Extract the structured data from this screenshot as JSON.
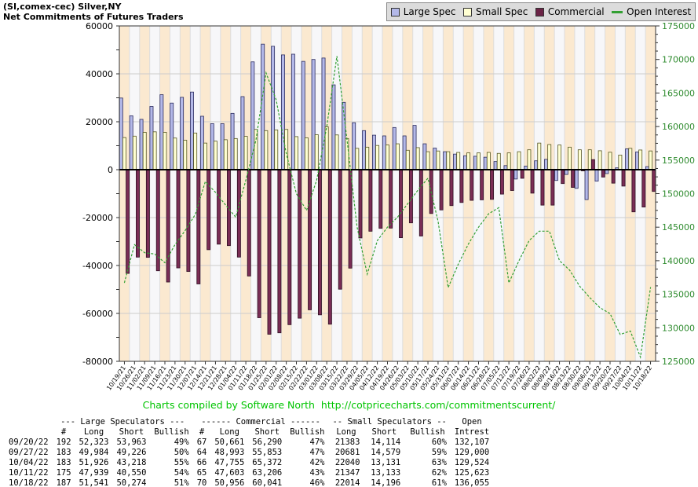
{
  "header": {
    "title_line1": "(SI,comex-cec) Silver,NY",
    "title_line2": "Net Commitments of Futures Traders"
  },
  "legend": {
    "items": [
      {
        "label": "Large Spec",
        "type": "square",
        "color": "#b3b8e8"
      },
      {
        "label": "Small Spec",
        "type": "square",
        "color": "#ffffd2"
      },
      {
        "label": "Commercial",
        "type": "square",
        "color": "#6b2346"
      },
      {
        "label": "Open Interest",
        "type": "line",
        "color": "#33a033"
      }
    ]
  },
  "chart_data": {
    "type": "bar+line",
    "title": "Net Commitments of Futures Traders",
    "categories": [
      "10/19/21",
      "10/26/21",
      "11/02/21",
      "11/09/21",
      "11/16/21",
      "11/23/21",
      "11/30/21",
      "12/07/21",
      "12/14/21",
      "12/21/21",
      "12/28/21",
      "01/04/22",
      "01/11/22",
      "01/18/22",
      "01/25/22",
      "02/01/22",
      "02/08/22",
      "02/15/22",
      "02/22/22",
      "03/01/22",
      "03/08/22",
      "03/15/22",
      "03/22/22",
      "03/29/22",
      "04/05/22",
      "04/12/22",
      "04/19/22",
      "04/26/22",
      "05/03/22",
      "05/10/22",
      "05/17/22",
      "05/24/22",
      "05/31/22",
      "06/07/22",
      "06/14/22",
      "06/21/22",
      "06/28/22",
      "07/05/22",
      "07/12/22",
      "07/19/22",
      "07/26/22",
      "08/02/22",
      "08/09/22",
      "08/16/22",
      "08/23/22",
      "08/30/22",
      "09/06/22",
      "09/13/22",
      "09/20/22",
      "09/27/22",
      "10/04/22",
      "10/11/22",
      "10/18/22"
    ],
    "series": [
      {
        "name": "Large Spec",
        "axis": "left",
        "kind": "bar",
        "fill": "#b3b8e8",
        "stroke": "#2b2b5e",
        "values": [
          29900,
          22500,
          21000,
          26400,
          31300,
          27800,
          30200,
          32400,
          22300,
          19200,
          19200,
          23500,
          30500,
          45000,
          52400,
          51500,
          47900,
          48200,
          45200,
          46000,
          46600,
          35400,
          28100,
          19600,
          16300,
          14400,
          14100,
          17600,
          14100,
          18500,
          10800,
          9000,
          7500,
          6500,
          5800,
          5600,
          5200,
          3400,
          1700,
          -3900,
          1500,
          3700,
          4300,
          -4500,
          -2000,
          -7800,
          -12500,
          -4800,
          -1640,
          758,
          8708,
          7389,
          1267
        ]
      },
      {
        "name": "Small Spec",
        "axis": "left",
        "kind": "bar",
        "fill": "#ffffd2",
        "stroke": "#555522",
        "values": [
          13400,
          14000,
          15600,
          15800,
          15600,
          13200,
          12300,
          15300,
          11100,
          11900,
          12500,
          13000,
          13900,
          16800,
          16300,
          16600,
          16800,
          13800,
          13300,
          14600,
          17900,
          14500,
          13000,
          8900,
          9400,
          10100,
          10300,
          10800,
          8100,
          9200,
          7500,
          7800,
          7500,
          7200,
          7000,
          7000,
          7200,
          6800,
          7000,
          7500,
          8300,
          11100,
          10500,
          10300,
          9400,
          8300,
          8300,
          7900,
          7269,
          6102,
          8909,
          8214,
          7818
        ]
      },
      {
        "name": "Commercial",
        "axis": "left",
        "kind": "bar",
        "fill": "#7a2d55",
        "stroke": "#2e0f22",
        "values": [
          -43300,
          -36500,
          -36600,
          -42200,
          -46900,
          -41000,
          -42500,
          -47700,
          -33400,
          -31100,
          -31700,
          -36500,
          -44400,
          -61800,
          -68700,
          -68100,
          -64700,
          -62000,
          -58500,
          -60600,
          -64500,
          -49900,
          -41100,
          -28500,
          -25700,
          -24500,
          -24400,
          -28400,
          -22200,
          -27700,
          -18300,
          -16800,
          -15000,
          -13700,
          -12800,
          -12600,
          -12400,
          -10200,
          -8700,
          -3600,
          -9800,
          -14800,
          -14800,
          -5800,
          -7400,
          -500,
          4200,
          -3100,
          -5629,
          -6860,
          -17617,
          -15603,
          -9085
        ]
      },
      {
        "name": "Open Interest",
        "axis": "right",
        "kind": "line",
        "stroke": "#33a033",
        "values": [
          136700,
          142400,
          141200,
          141000,
          139700,
          142400,
          144500,
          146900,
          151800,
          150200,
          148300,
          146500,
          152000,
          158000,
          168000,
          164000,
          156000,
          150000,
          147500,
          152000,
          160000,
          170500,
          158000,
          145000,
          138000,
          143000,
          145000,
          146500,
          148500,
          150500,
          152300,
          145900,
          136000,
          139500,
          142500,
          145000,
          147000,
          147900,
          136700,
          140000,
          143000,
          144400,
          144400,
          140000,
          138600,
          136200,
          134500,
          133000,
          132107,
          129000,
          129524,
          125623,
          136055
        ]
      }
    ],
    "axis_left": {
      "min": -80000,
      "max": 60000,
      "step": 20000,
      "labels": [
        "60000",
        "40000",
        "20000",
        "0",
        "-20000",
        "-40000",
        "-60000",
        "-80000"
      ]
    },
    "axis_right": {
      "min": 125000,
      "max": 175000,
      "step": 5000,
      "labels": [
        "175000",
        "170000",
        "165000",
        "160000",
        "155000",
        "150000",
        "145000",
        "140000",
        "135000",
        "130000",
        "125000"
      ],
      "color": "#2e8b2e"
    },
    "grid": {
      "stripe_a": "#fbe9d0",
      "stripe_b": "#f7f7f9",
      "hline": "#cccccc",
      "vline": "#dddddd",
      "zero_line": "#000000",
      "frame": "#333333"
    },
    "legend_position": "top-right"
  },
  "footer": {
    "credit": "Charts compiled by Software North",
    "url": "http://cotpricecharts.com/commitmentscurrent/"
  },
  "table": {
    "group_headers": [
      "--- Large Speculators ---",
      "------ Commercial ------",
      "-- Small Speculators --",
      "Open"
    ],
    "col_headers": [
      "",
      "#",
      "Long",
      "Short",
      "Bullish",
      "#",
      "Long",
      "Short",
      "Bullish",
      "Long",
      "Short",
      "Bullish",
      "Intrest"
    ],
    "rows": [
      [
        "09/20/22",
        "192",
        "52,323",
        "53,963",
        "49%",
        "67",
        "50,661",
        "56,290",
        "47%",
        "21383",
        "14,114",
        "60%",
        "132,107"
      ],
      [
        "09/27/22",
        "183",
        "49,984",
        "49,226",
        "50%",
        "64",
        "48,993",
        "55,853",
        "47%",
        "20681",
        "14,579",
        "59%",
        "129,000"
      ],
      [
        "10/04/22",
        "183",
        "51,926",
        "43,218",
        "55%",
        "66",
        "47,755",
        "65,372",
        "42%",
        "22040",
        "13,131",
        "63%",
        "129,524"
      ],
      [
        "10/11/22",
        "175",
        "47,939",
        "40,550",
        "54%",
        "65",
        "47,603",
        "63,206",
        "43%",
        "21347",
        "13,133",
        "62%",
        "125,623"
      ],
      [
        "10/18/22",
        "187",
        "51,541",
        "50,274",
        "51%",
        "70",
        "50,956",
        "60,041",
        "46%",
        "22014",
        "14,196",
        "61%",
        "136,055"
      ]
    ]
  }
}
